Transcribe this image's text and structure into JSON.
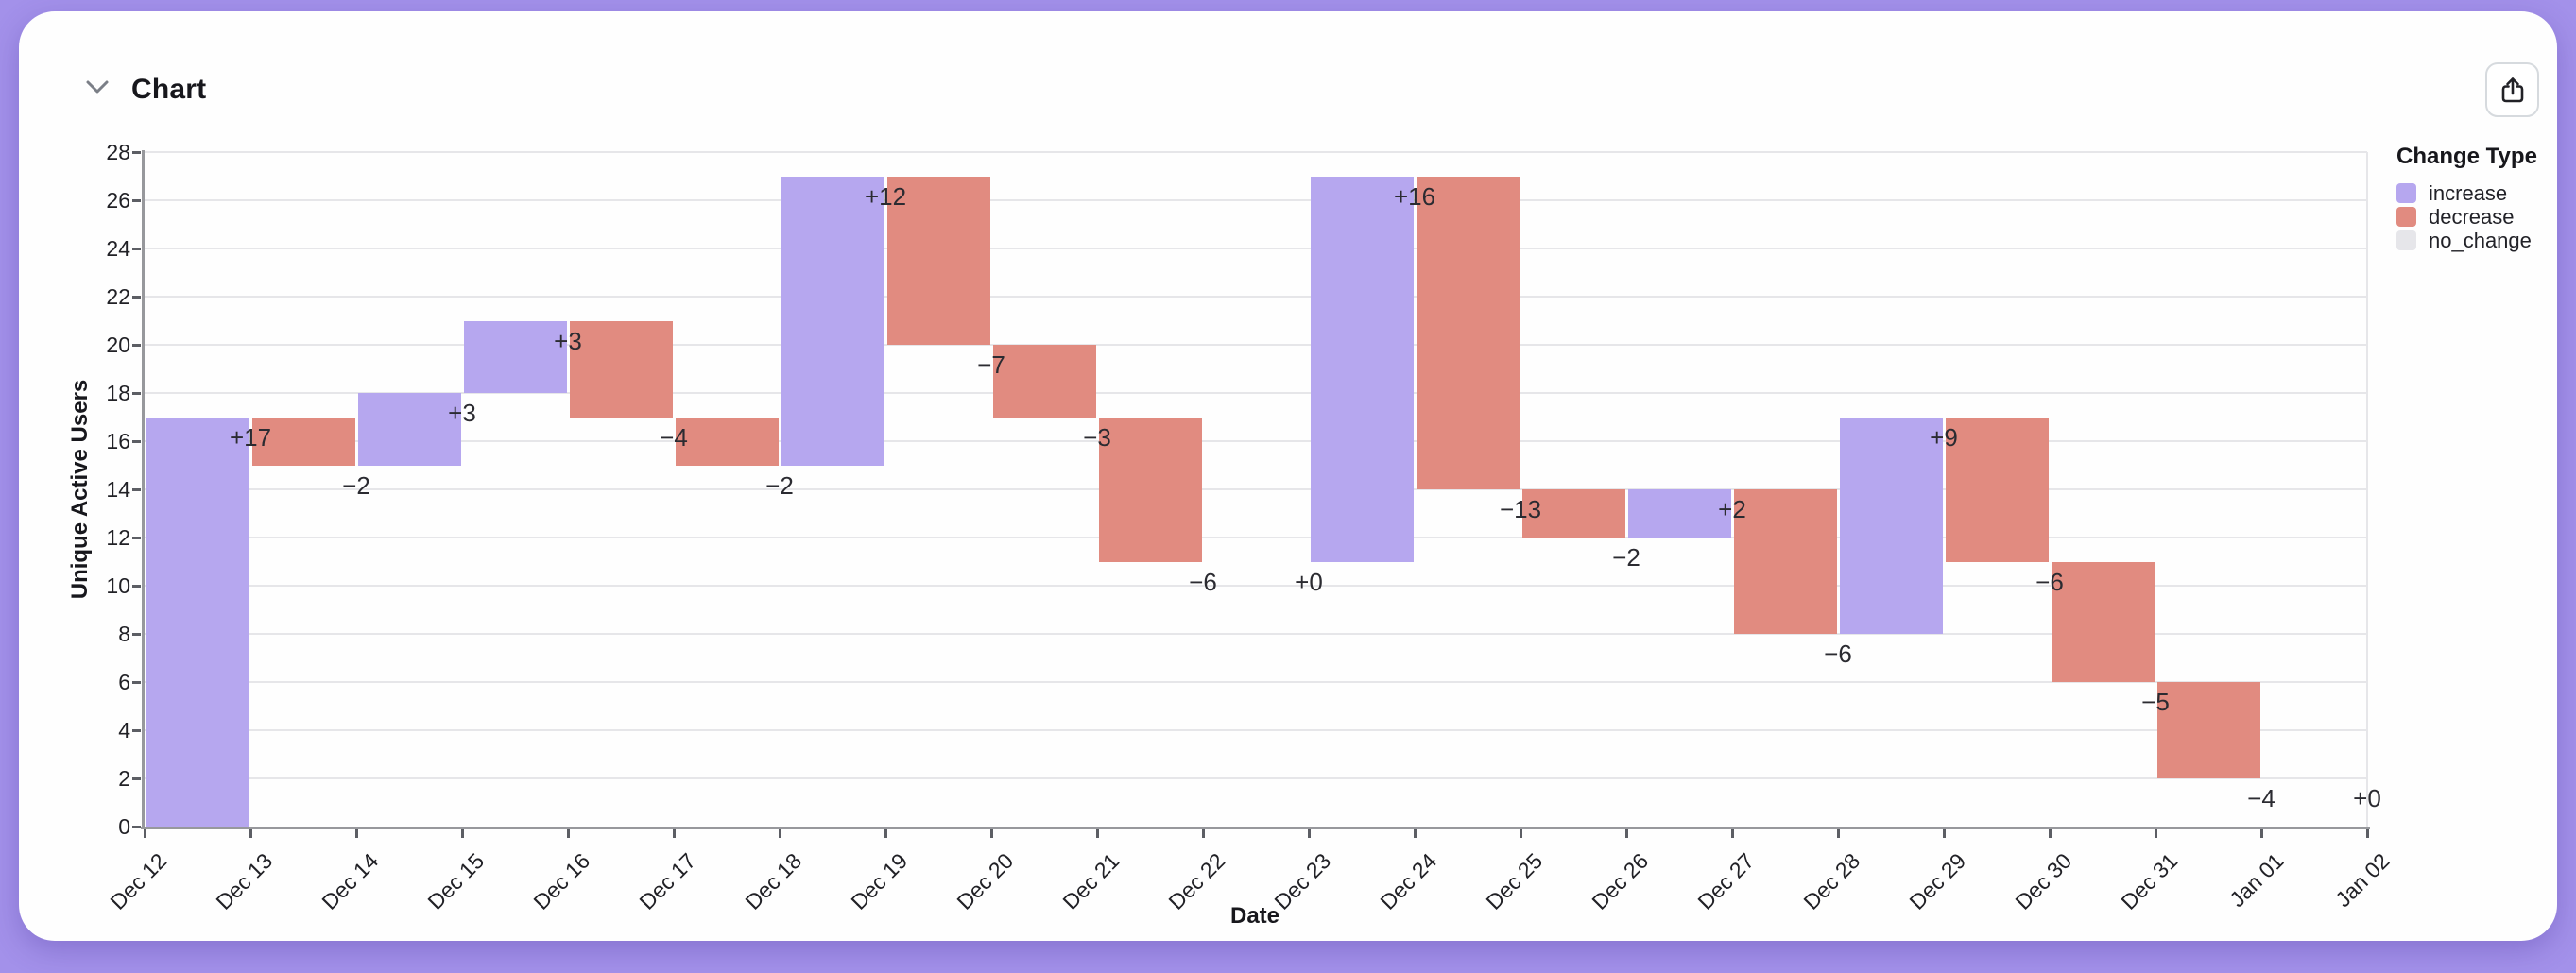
{
  "header": {
    "title": "Chart"
  },
  "toolbar": {
    "share_icon": "share-export",
    "collapse_icon": "chevron-down"
  },
  "colors": {
    "page_bg": "#a391ea",
    "card_bg": "#fefefe",
    "increase": "#b6a7ef",
    "decrease": "#e18b80",
    "no_change": "#e6e6ea",
    "grid": "#e6e6e9",
    "axis": "#97989c",
    "tick": "#5c5e64",
    "text": "#212126",
    "border": "#d6dade"
  },
  "chart_data": {
    "type": "bar",
    "subtype": "waterfall",
    "title": "Chart",
    "xlabel": "Date",
    "ylabel": "Unique Active Users",
    "ylim": [
      0,
      28
    ],
    "ytick_step": 2,
    "yticks": [
      0,
      2,
      4,
      6,
      8,
      10,
      12,
      14,
      16,
      18,
      20,
      22,
      24,
      26,
      28
    ],
    "grid": true,
    "categories": [
      "Dec 12",
      "Dec 13",
      "Dec 14",
      "Dec 15",
      "Dec 16",
      "Dec 17",
      "Dec 18",
      "Dec 19",
      "Dec 20",
      "Dec 21",
      "Dec 22",
      "Dec 23",
      "Dec 24",
      "Dec 25",
      "Dec 26",
      "Dec 27",
      "Dec 28",
      "Dec 29",
      "Dec 30",
      "Dec 31",
      "Jan 01",
      "Jan 02"
    ],
    "series": [
      {
        "date": "Dec 12",
        "change": 17,
        "label": "+17",
        "type": "increase",
        "end_value": 17
      },
      {
        "date": "Dec 13",
        "change": -2,
        "label": "−2",
        "type": "decrease",
        "end_value": 15
      },
      {
        "date": "Dec 14",
        "change": 3,
        "label": "+3",
        "type": "increase",
        "end_value": 18
      },
      {
        "date": "Dec 15",
        "change": 3,
        "label": "+3",
        "type": "increase",
        "end_value": 21
      },
      {
        "date": "Dec 16",
        "change": -4,
        "label": "−4",
        "type": "decrease",
        "end_value": 17
      },
      {
        "date": "Dec 17",
        "change": -2,
        "label": "−2",
        "type": "decrease",
        "end_value": 15
      },
      {
        "date": "Dec 18",
        "change": 12,
        "label": "+12",
        "type": "increase",
        "end_value": 27
      },
      {
        "date": "Dec 19",
        "change": -7,
        "label": "−7",
        "type": "decrease",
        "end_value": 20
      },
      {
        "date": "Dec 20",
        "change": -3,
        "label": "−3",
        "type": "decrease",
        "end_value": 17
      },
      {
        "date": "Dec 21",
        "change": -6,
        "label": "−6",
        "type": "decrease",
        "end_value": 11
      },
      {
        "date": "Dec 22",
        "change": 0,
        "label": "+0",
        "type": "no_change",
        "end_value": 11
      },
      {
        "date": "Dec 23",
        "change": 16,
        "label": "+16",
        "type": "increase",
        "end_value": 27
      },
      {
        "date": "Dec 24",
        "change": -13,
        "label": "−13",
        "type": "decrease",
        "end_value": 14
      },
      {
        "date": "Dec 25",
        "change": -2,
        "label": "−2",
        "type": "decrease",
        "end_value": 12
      },
      {
        "date": "Dec 26",
        "change": 2,
        "label": "+2",
        "type": "increase",
        "end_value": 14
      },
      {
        "date": "Dec 27",
        "change": -6,
        "label": "−6",
        "type": "decrease",
        "end_value": 8
      },
      {
        "date": "Dec 28",
        "change": 9,
        "label": "+9",
        "type": "increase",
        "end_value": 17
      },
      {
        "date": "Dec 29",
        "change": -6,
        "label": "−6",
        "type": "decrease",
        "end_value": 11
      },
      {
        "date": "Dec 30",
        "change": -5,
        "label": "−5",
        "type": "decrease",
        "end_value": 6
      },
      {
        "date": "Dec 31",
        "change": -4,
        "label": "−4",
        "type": "decrease",
        "end_value": 2
      },
      {
        "date": "Jan 01",
        "change": 0,
        "label": "+0",
        "type": "no_change",
        "end_value": 2
      }
    ],
    "legend": {
      "title": "Change Type",
      "position": "top-right",
      "items": [
        {
          "label": "increase",
          "color_key": "increase"
        },
        {
          "label": "decrease",
          "color_key": "decrease"
        },
        {
          "label": "no_change",
          "color_key": "no_change"
        }
      ]
    }
  }
}
